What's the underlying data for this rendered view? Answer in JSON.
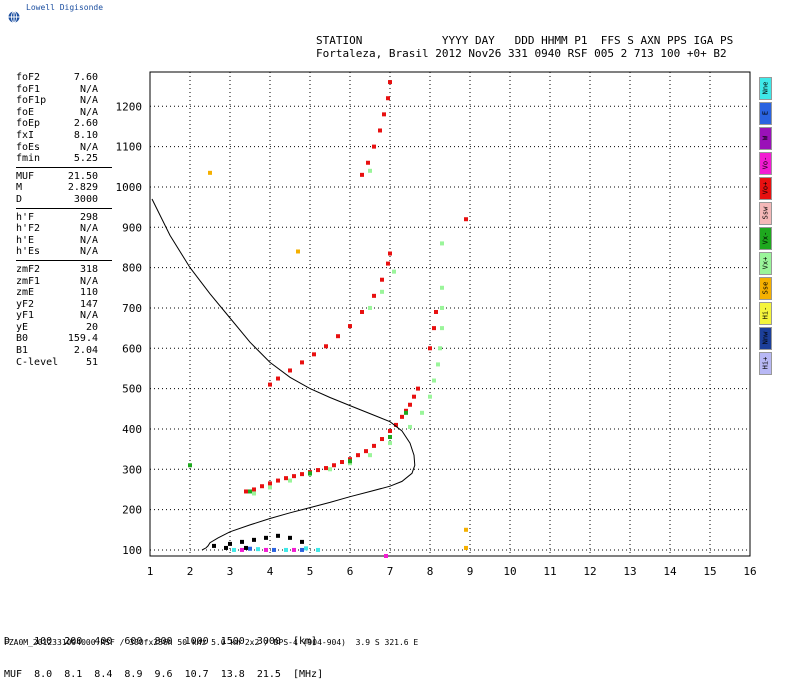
{
  "logo": {
    "text": "Lowell Digisonde"
  },
  "header": {
    "line1": "STATION            YYYY DAY   DDD HHMM P1  FFS S AXN PPS IGA PS",
    "line2": "Fortaleza, Brasil 2012 Nov26 331 0940 RSF 005 2 713 100 +0+ B2"
  },
  "params_groups": [
    [
      {
        "k": "foF2",
        "v": "7.60"
      },
      {
        "k": "foF1",
        "v": "N/A"
      },
      {
        "k": "foF1p",
        "v": "N/A"
      },
      {
        "k": "foE",
        "v": "N/A"
      },
      {
        "k": "foEp",
        "v": "2.60"
      },
      {
        "k": "fxI",
        "v": "8.10"
      },
      {
        "k": "foEs",
        "v": "N/A"
      },
      {
        "k": "fmin",
        "v": "5.25"
      }
    ],
    [
      {
        "k": "MUF",
        "v": "21.50"
      },
      {
        "k": "M",
        "v": "2.829"
      },
      {
        "k": "D",
        "v": "3000"
      }
    ],
    [
      {
        "k": "h'F",
        "v": "298"
      },
      {
        "k": "h'F2",
        "v": "N/A"
      },
      {
        "k": "h'E",
        "v": "N/A"
      },
      {
        "k": "h'Es",
        "v": "N/A"
      }
    ],
    [
      {
        "k": "zmF2",
        "v": "318"
      },
      {
        "k": "zmF1",
        "v": "N/A"
      },
      {
        "k": "zmE",
        "v": "110"
      },
      {
        "k": "yF2",
        "v": "147"
      },
      {
        "k": "yF1",
        "v": "N/A"
      },
      {
        "k": "yE",
        "v": "20"
      },
      {
        "k": "B0",
        "v": "159.4"
      },
      {
        "k": "B1",
        "v": "2.04"
      },
      {
        "k": "C-level",
        "v": "51"
      }
    ]
  ],
  "legend": [
    {
      "label": "Nne",
      "color": "#3fe8e8"
    },
    {
      "label": "E",
      "color": "#2a63e0"
    },
    {
      "label": "W",
      "color": "#9a11b8"
    },
    {
      "label": "Vo-",
      "color": "#f21bd2"
    },
    {
      "label": "Vo+",
      "color": "#e81010"
    },
    {
      "label": "Ssw",
      "color": "#f5b8b8"
    },
    {
      "label": "Vx-",
      "color": "#1ea81e"
    },
    {
      "label": "Vx+",
      "color": "#9af59a"
    },
    {
      "label": "Sse",
      "color": "#f5b000"
    },
    {
      "label": "Hi-",
      "color": "#f5f53c"
    },
    {
      "label": "Nnw",
      "color": "#1c3f9a"
    },
    {
      "label": "Hi+",
      "color": "#b8b8f5"
    }
  ],
  "dmuf": {
    "line1": "D    100  200  400  600  800  1000  1500  3000  [km]",
    "line2": "MUF  8.0  8.1  8.4  8.9  9.6  10.7  13.8  21.5  [MHz]"
  },
  "footer": "FZA0M_2012331094000.RSF / 300fx256h 50 kHz 5.0 km 2x2 / DPS-4 (904-904)  3.9 S 321.6 E",
  "chart_data": {
    "type": "scatter",
    "title": "",
    "xlabel": "",
    "ylabel": "",
    "xlim": [
      1,
      16
    ],
    "ylim": [
      85,
      1285
    ],
    "x_ticks": [
      1,
      2,
      3,
      4,
      5,
      6,
      7,
      8,
      9,
      10,
      11,
      12,
      13,
      14,
      15,
      16
    ],
    "y_ticks": [
      100,
      200,
      300,
      400,
      500,
      600,
      700,
      800,
      900,
      1000,
      1100,
      1200
    ],
    "grid": true,
    "series": [
      {
        "color": "#e81010",
        "points": [
          [
            3.4,
            245
          ],
          [
            3.6,
            250
          ],
          [
            3.8,
            258
          ],
          [
            4.0,
            265
          ],
          [
            4.2,
            272
          ],
          [
            4.4,
            278
          ],
          [
            4.6,
            283
          ],
          [
            4.8,
            288
          ],
          [
            5.0,
            293
          ],
          [
            5.2,
            298
          ],
          [
            5.4,
            303
          ],
          [
            5.6,
            310
          ],
          [
            5.8,
            318
          ],
          [
            6.0,
            325
          ],
          [
            6.2,
            335
          ],
          [
            6.4,
            345
          ],
          [
            6.6,
            358
          ],
          [
            6.8,
            375
          ],
          [
            7.0,
            395
          ],
          [
            7.15,
            410
          ],
          [
            7.3,
            430
          ],
          [
            7.4,
            445
          ],
          [
            7.5,
            460
          ],
          [
            7.6,
            480
          ],
          [
            7.7,
            500
          ],
          [
            4.0,
            510
          ],
          [
            4.2,
            525
          ],
          [
            4.5,
            545
          ],
          [
            4.8,
            565
          ],
          [
            5.1,
            585
          ],
          [
            5.4,
            605
          ],
          [
            5.7,
            630
          ],
          [
            6.0,
            655
          ],
          [
            6.3,
            690
          ],
          [
            6.6,
            730
          ],
          [
            6.8,
            770
          ],
          [
            6.95,
            810
          ],
          [
            7.0,
            835
          ],
          [
            6.3,
            1030
          ],
          [
            6.45,
            1060
          ],
          [
            6.6,
            1100
          ],
          [
            6.75,
            1140
          ],
          [
            6.85,
            1180
          ],
          [
            6.95,
            1220
          ],
          [
            7.0,
            1260
          ],
          [
            8.0,
            600
          ],
          [
            8.1,
            650
          ],
          [
            8.15,
            690
          ],
          [
            8.9,
            920
          ]
        ]
      },
      {
        "color": "#9af59a",
        "points": [
          [
            3.6,
            240
          ],
          [
            4.0,
            255
          ],
          [
            4.5,
            272
          ],
          [
            5.0,
            288
          ],
          [
            5.5,
            300
          ],
          [
            6.0,
            315
          ],
          [
            6.5,
            335
          ],
          [
            7.0,
            365
          ],
          [
            7.5,
            405
          ],
          [
            7.8,
            440
          ],
          [
            8.0,
            480
          ],
          [
            8.1,
            520
          ],
          [
            8.2,
            560
          ],
          [
            8.25,
            600
          ],
          [
            8.3,
            650
          ],
          [
            8.3,
            700
          ],
          [
            8.3,
            750
          ],
          [
            6.5,
            700
          ],
          [
            6.8,
            740
          ],
          [
            7.1,
            790
          ],
          [
            8.3,
            860
          ],
          [
            6.5,
            1040
          ]
        ]
      },
      {
        "color": "#1ea81e",
        "points": [
          [
            2.0,
            310
          ],
          [
            3.5,
            245
          ],
          [
            5.0,
            290
          ],
          [
            6.0,
            320
          ],
          [
            7.0,
            380
          ],
          [
            7.4,
            440
          ]
        ]
      },
      {
        "color": "#f5b000",
        "points": [
          [
            2.5,
            1035
          ],
          [
            4.7,
            840
          ],
          [
            8.9,
            150
          ],
          [
            8.9,
            105
          ]
        ]
      },
      {
        "color": "#000000",
        "points": [
          [
            2.6,
            110
          ],
          [
            3.0,
            115
          ],
          [
            3.3,
            120
          ],
          [
            3.6,
            125
          ],
          [
            3.9,
            130
          ],
          [
            4.2,
            135
          ],
          [
            4.5,
            130
          ],
          [
            4.8,
            120
          ],
          [
            2.9,
            105
          ],
          [
            3.4,
            105
          ]
        ]
      },
      {
        "color": "#3fe8e8",
        "points": [
          [
            3.1,
            100
          ],
          [
            3.7,
            102
          ],
          [
            4.4,
            100
          ],
          [
            4.9,
            104
          ],
          [
            5.2,
            100
          ]
        ]
      },
      {
        "color": "#f21bd2",
        "points": [
          [
            3.3,
            100
          ],
          [
            3.9,
            100
          ],
          [
            4.6,
            100
          ],
          [
            6.9,
            85
          ]
        ]
      },
      {
        "color": "#2a63e0",
        "points": [
          [
            3.5,
            103
          ],
          [
            4.1,
            100
          ],
          [
            4.8,
            100
          ]
        ]
      }
    ],
    "profile": [
      [
        1.05,
        970
      ],
      [
        1.5,
        880
      ],
      [
        2.0,
        800
      ],
      [
        2.5,
        735
      ],
      [
        3.0,
        675
      ],
      [
        3.5,
        615
      ],
      [
        4.0,
        565
      ],
      [
        4.5,
        528
      ],
      [
        5.0,
        500
      ],
      [
        5.5,
        478
      ],
      [
        6.0,
        458
      ],
      [
        6.5,
        438
      ],
      [
        7.0,
        418
      ],
      [
        7.3,
        395
      ],
      [
        7.5,
        365
      ],
      [
        7.6,
        335
      ],
      [
        7.62,
        310
      ],
      [
        7.55,
        290
      ],
      [
        7.3,
        270
      ],
      [
        7.0,
        258
      ],
      [
        6.5,
        245
      ],
      [
        6.0,
        232
      ],
      [
        5.5,
        218
      ],
      [
        5.0,
        205
      ],
      [
        4.5,
        192
      ],
      [
        4.0,
        178
      ],
      [
        3.5,
        162
      ],
      [
        3.0,
        145
      ],
      [
        2.7,
        130
      ],
      [
        2.5,
        118
      ],
      [
        2.45,
        110
      ],
      [
        2.4,
        105
      ],
      [
        2.3,
        100
      ]
    ]
  }
}
